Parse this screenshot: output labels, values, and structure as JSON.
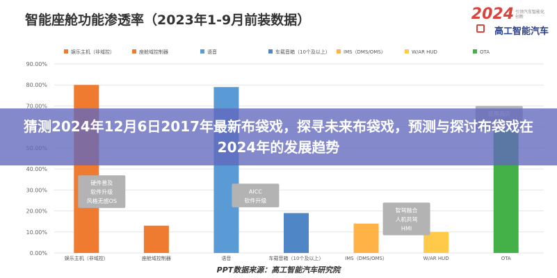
{
  "header": {
    "title": "智能座舱功能渗透率（2023年1-9月前装数据）"
  },
  "logo": {
    "year": "2024",
    "tagline": "引领汽车智能化 创新",
    "brand": "高工智能汽车"
  },
  "chart_data": {
    "type": "bar",
    "categories": [
      "娱乐主机（非域控）",
      "座舱域控制器",
      "语音",
      "车载音箱（10个及以上）",
      "IMS（DMS/OMS）",
      "W/AR HUD",
      "OTA"
    ],
    "legend": [
      "娱乐主机（非域控）",
      "座舱域控制器",
      "语音",
      "车载音箱（10个及以上）",
      "IMS（DMS/OMS）",
      "W/AR HUD",
      "OTA"
    ],
    "values": [
      80,
      13,
      79,
      19,
      14,
      10,
      62
    ],
    "colors": [
      "#ee7b30",
      "#ee7b30",
      "#5b9bd5",
      "#4f86c6",
      "#ffb347",
      "#ffc94a",
      "#44b048"
    ],
    "yticks": [
      "0.00%",
      "10.00%",
      "20.00%",
      "30.00%",
      "40.00%",
      "50.00%",
      "60.00%",
      "70.00%",
      "80.00%",
      "90.00%"
    ],
    "ylim": [
      0,
      90
    ],
    "annotations": [
      {
        "category": 0,
        "level": 35,
        "lines": [
          "硬件普及",
          "软件升级",
          "风格无感OS"
        ]
      },
      {
        "category": 2,
        "level": 31,
        "lines": [
          "AICC",
          "软件升级"
        ]
      },
      {
        "category": 4,
        "level": 22,
        "lines": [
          "智驾融合",
          "人机共驾",
          "HMI"
        ]
      },
      {
        "category": 6,
        "level": 68,
        "lines": [
          "应用商店",
          "……"
        ]
      }
    ],
    "grid": true,
    "legend_position": "top"
  },
  "source": "PPT数据来源：高工智能汽车研究院",
  "banner": {
    "text": "猜测2024年12月6日2017年最新布袋戏，探寻未来布袋戏，预测与探讨布袋戏在2024年的发展趋势"
  }
}
